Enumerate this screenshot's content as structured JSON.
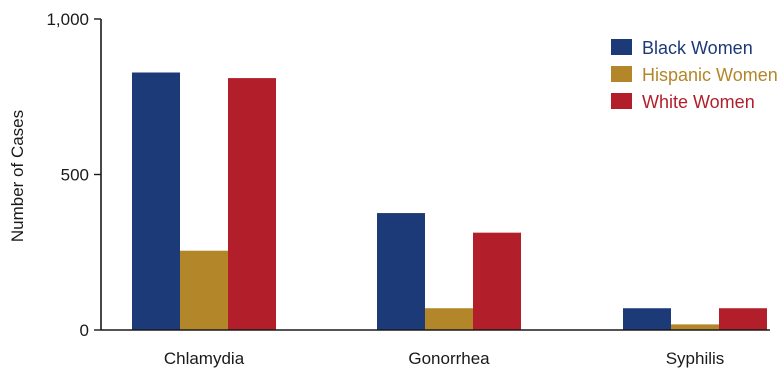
{
  "chart_data": {
    "type": "bar",
    "title": "",
    "xlabel": "",
    "ylabel": "Number of Cases",
    "categories": [
      "Chlamydia",
      "Gonorrhea",
      "Syphilis"
    ],
    "series": [
      {
        "name": "Black Women",
        "color": "#1c3a78",
        "values": [
          828,
          376,
          70
        ]
      },
      {
        "name": "Hispanic Women",
        "color": "#b3862a",
        "values": [
          255,
          70,
          18
        ]
      },
      {
        "name": "White Women",
        "color": "#b21f2b",
        "values": [
          810,
          313,
          70
        ]
      }
    ],
    "ylim": [
      0,
      1000
    ],
    "yticks": [
      0,
      500,
      1000
    ],
    "ytick_labels": [
      "0",
      "500",
      "1,000"
    ],
    "grid": false,
    "legend_position": "top-right"
  }
}
